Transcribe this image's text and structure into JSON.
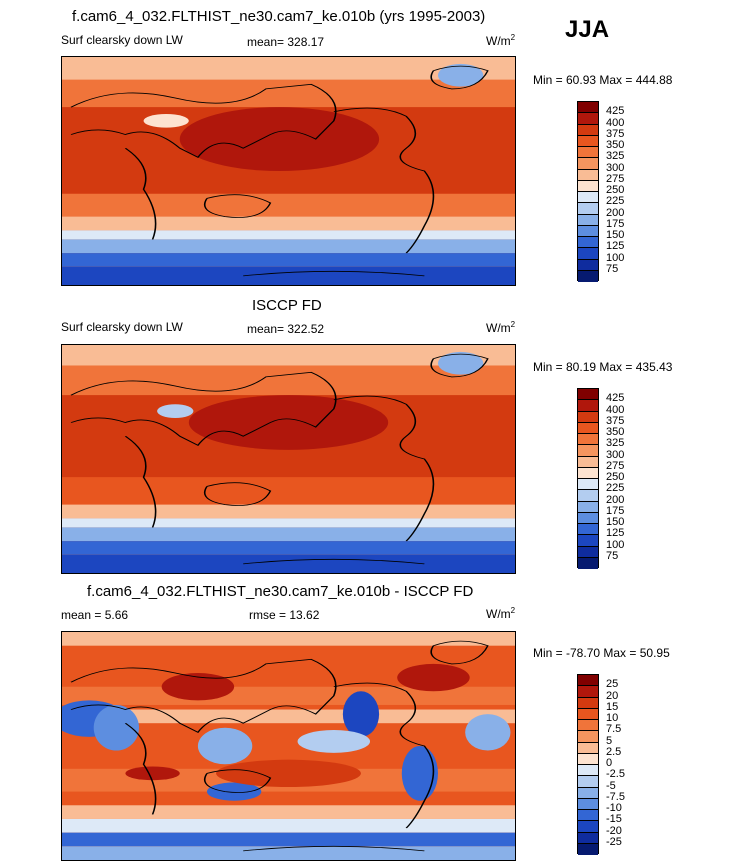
{
  "season": "JJA",
  "panels": [
    {
      "title": "f.cam6_4_032.FLTHIST_ne30.cam7_ke.010b (yrs 1995-2003)",
      "left_label": "Surf clearsky down LW",
      "center_label": "mean= 328.17",
      "units": "W/m",
      "units_sup": "2",
      "minmax": "Min =  60.93 Max = 444.88",
      "levels": [
        "425",
        "400",
        "375",
        "350",
        "325",
        "300",
        "275",
        "250",
        "225",
        "200",
        "175",
        "150",
        "125",
        "100",
        "75"
      ],
      "colors": [
        "#800000",
        "#b0170c",
        "#d33a10",
        "#e8561f",
        "#f0743a",
        "#f5955f",
        "#f9bc95",
        "#fde3d0",
        "#dde9f7",
        "#b3cdf0",
        "#89b0e8",
        "#5d8ee0",
        "#3366d4",
        "#1c46c0",
        "#0f2c9e",
        "#061a70"
      ]
    },
    {
      "title": "ISCCP FD",
      "left_label": "Surf clearsky down LW",
      "center_label": "mean= 322.52",
      "units": "W/m",
      "units_sup": "2",
      "minmax": "Min =  80.19 Max = 435.43",
      "levels": [
        "425",
        "400",
        "375",
        "350",
        "325",
        "300",
        "275",
        "250",
        "225",
        "200",
        "175",
        "150",
        "125",
        "100",
        "75"
      ],
      "colors": [
        "#800000",
        "#b0170c",
        "#d33a10",
        "#e8561f",
        "#f0743a",
        "#f5955f",
        "#f9bc95",
        "#fde3d0",
        "#dde9f7",
        "#b3cdf0",
        "#89b0e8",
        "#5d8ee0",
        "#3366d4",
        "#1c46c0",
        "#0f2c9e",
        "#061a70"
      ]
    },
    {
      "title": "f.cam6_4_032.FLTHIST_ne30.cam7_ke.010b - ISCCP FD",
      "left_label": "mean =   5.66",
      "center_label": "rmse =  13.62",
      "units": "W/m",
      "units_sup": "2",
      "minmax": "Min = -78.70 Max =  50.95",
      "levels": [
        "25",
        "20",
        "15",
        "10",
        "7.5",
        "5",
        "2.5",
        "0",
        "-2.5",
        "-5",
        "-7.5",
        "-10",
        "-15",
        "-20",
        "-25"
      ],
      "colors": [
        "#800000",
        "#b0170c",
        "#d33a10",
        "#e8561f",
        "#f0743a",
        "#f5955f",
        "#f9bc95",
        "#fde3d0",
        "#dde9f7",
        "#b3cdf0",
        "#89b0e8",
        "#5d8ee0",
        "#3366d4",
        "#1c46c0",
        "#0f2c9e",
        "#061a70"
      ]
    }
  ]
}
